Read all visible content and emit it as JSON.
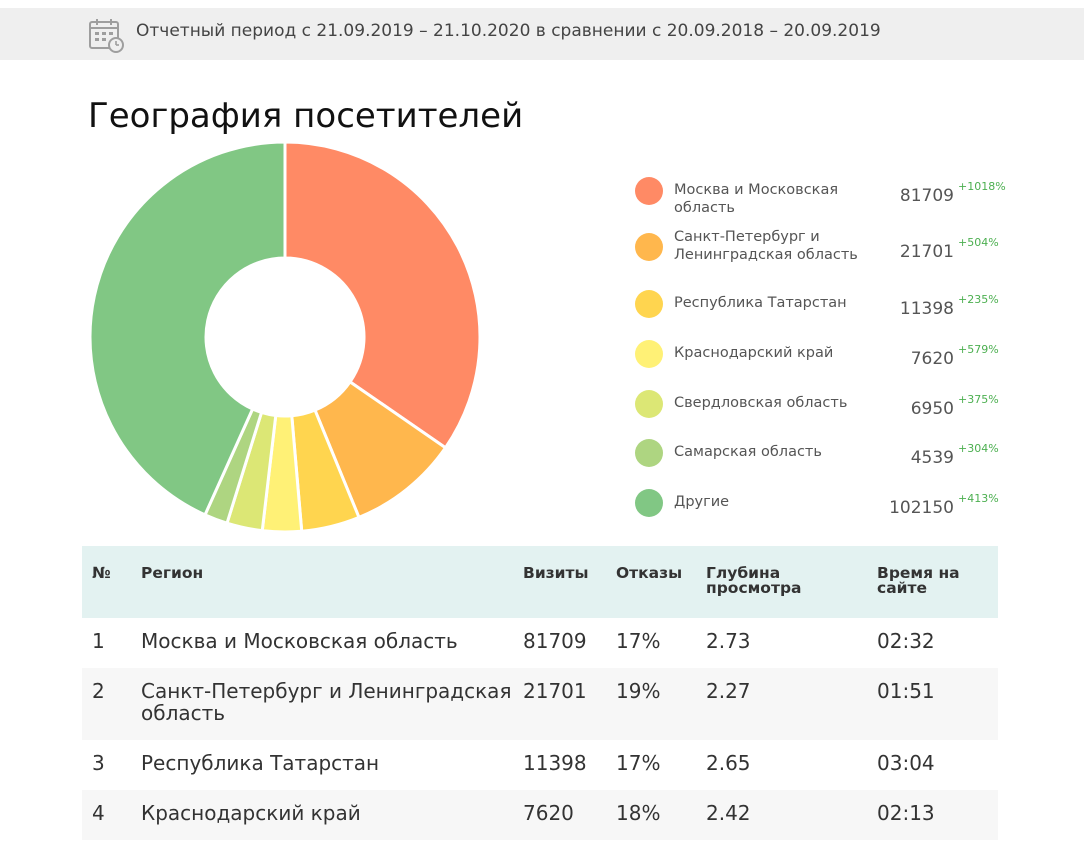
{
  "header": {
    "period_text": "Отчетный период с 21.09.2019 – 21.10.2020 в сравнении с 20.09.2018 – 20.09.2019",
    "icon": "calendar-clock-icon"
  },
  "title": "География посетителей",
  "chart_data": {
    "type": "pie",
    "donut": true,
    "title": "География посетителей",
    "legend_position": "right",
    "slices": [
      {
        "label": "Москва и Московская область",
        "value": 81709,
        "change": "+1018%",
        "color": "#ff8a65"
      },
      {
        "label": "Санкт-Петербург и Ленинградская область",
        "value": 21701,
        "change": "+504%",
        "color": "#ffb74d"
      },
      {
        "label": "Республика Татарстан",
        "value": 11398,
        "change": "+235%",
        "color": "#ffd54f"
      },
      {
        "label": "Краснодарский край",
        "value": 7620,
        "change": "+579%",
        "color": "#fff176"
      },
      {
        "label": "Свердловская область",
        "value": 6950,
        "change": "+375%",
        "color": "#dce775"
      },
      {
        "label": "Самарская область",
        "value": 4539,
        "change": "+304%",
        "color": "#aed581"
      },
      {
        "label": "Другие",
        "value": 102150,
        "change": "+413%",
        "color": "#81c784"
      }
    ]
  },
  "legend": {
    "items": [
      {
        "label": "Москва и Московская область",
        "value": "81709",
        "change": "+1018%"
      },
      {
        "label": "Санкт-Петербург и Ленинградская область",
        "value": "21701",
        "change": "+504%"
      },
      {
        "label": "Республика Татарстан",
        "value": "11398",
        "change": "+235%"
      },
      {
        "label": "Краснодарский край",
        "value": "7620",
        "change": "+579%"
      },
      {
        "label": "Свердловская область",
        "value": "6950",
        "change": "+375%"
      },
      {
        "label": "Самарская область",
        "value": "4539",
        "change": "+304%"
      },
      {
        "label": "Другие",
        "value": "102150",
        "change": "+413%"
      }
    ]
  },
  "table": {
    "headers": [
      "№",
      "Регион",
      "Визиты",
      "Отказы",
      "Глубина просмотра",
      "Время на сайте"
    ],
    "rows": [
      [
        "1",
        "Москва и Московская область",
        "81709",
        "17%",
        "2.73",
        "02:32"
      ],
      [
        "2",
        "Санкт-Петербург и Ленинградская область",
        "21701",
        "19%",
        "2.27",
        "01:51"
      ],
      [
        "3",
        "Республика Татарстан",
        "11398",
        "17%",
        "2.65",
        "03:04"
      ],
      [
        "4",
        "Краснодарский край",
        "7620",
        "18%",
        "2.42",
        "02:13"
      ]
    ]
  }
}
